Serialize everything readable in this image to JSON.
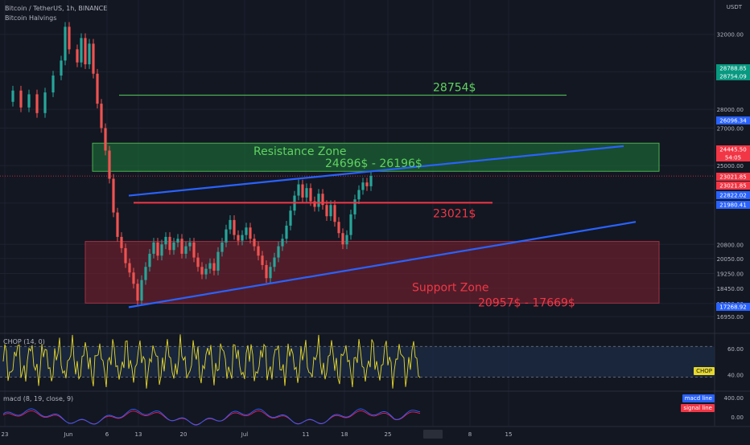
{
  "header": {
    "symbol": "Bitcoin / TetherUS, 1h, BINANCE",
    "indicator": "Bitcoin Halvings",
    "currency": "USDT"
  },
  "chart_data": {
    "type": "candlestick",
    "x_tick_labels": [
      "23",
      "Jun",
      "6",
      "13",
      "20",
      "Jul",
      "11",
      "18",
      "25",
      "Aug",
      "8",
      "15"
    ],
    "y_tick_labels": [
      "32000.00",
      "30000.00",
      "28000.00",
      "27000.00",
      "25000.00",
      "23000.00",
      "20800.00",
      "20050.00",
      "19250.00",
      "18450.00",
      "17650.00",
      "16950.00"
    ],
    "price_path": [
      [
        0,
        28400
      ],
      [
        2,
        29000
      ],
      [
        4,
        28100
      ],
      [
        6,
        28800
      ],
      [
        8,
        27800
      ],
      [
        10,
        28900
      ],
      [
        12,
        29800
      ],
      [
        14,
        30600
      ],
      [
        15,
        32400
      ],
      [
        16,
        31200
      ],
      [
        18,
        30500
      ],
      [
        19,
        31800
      ],
      [
        20,
        30400
      ],
      [
        21,
        31500
      ],
      [
        22,
        29900
      ],
      [
        23,
        28300
      ],
      [
        24,
        27000
      ],
      [
        25,
        25800
      ],
      [
        26,
        24300
      ],
      [
        27,
        22500
      ],
      [
        28,
        21200
      ],
      [
        29,
        20600
      ],
      [
        30,
        19800
      ],
      [
        31,
        19300
      ],
      [
        32,
        18700
      ],
      [
        33,
        17800
      ],
      [
        34,
        18900
      ],
      [
        35,
        19600
      ],
      [
        36,
        20300
      ],
      [
        37,
        20900
      ],
      [
        38,
        20200
      ],
      [
        39,
        20800
      ],
      [
        40,
        21200
      ],
      [
        41,
        20500
      ],
      [
        42,
        20900
      ],
      [
        43,
        21100
      ],
      [
        44,
        20300
      ],
      [
        45,
        20700
      ],
      [
        46,
        20900
      ],
      [
        47,
        20100
      ],
      [
        48,
        19600
      ],
      [
        49,
        19200
      ],
      [
        50,
        19500
      ],
      [
        51,
        19800
      ],
      [
        52,
        19400
      ],
      [
        53,
        20400
      ],
      [
        54,
        20900
      ],
      [
        55,
        21600
      ],
      [
        56,
        22100
      ],
      [
        57,
        21300
      ],
      [
        58,
        21000
      ],
      [
        59,
        21300
      ],
      [
        60,
        21700
      ],
      [
        61,
        21100
      ],
      [
        62,
        20700
      ],
      [
        63,
        20200
      ],
      [
        64,
        19700
      ],
      [
        65,
        19000
      ],
      [
        66,
        19600
      ],
      [
        67,
        20100
      ],
      [
        68,
        20700
      ],
      [
        69,
        21100
      ],
      [
        70,
        21800
      ],
      [
        71,
        22600
      ],
      [
        72,
        23400
      ],
      [
        73,
        24000
      ],
      [
        74,
        23300
      ],
      [
        75,
        23800
      ],
      [
        76,
        23100
      ],
      [
        77,
        22800
      ],
      [
        78,
        23500
      ],
      [
        79,
        22900
      ],
      [
        80,
        22300
      ],
      [
        81,
        22900
      ],
      [
        82,
        22000
      ],
      [
        83,
        21400
      ],
      [
        84,
        20800
      ],
      [
        85,
        21300
      ],
      [
        86,
        22400
      ],
      [
        87,
        23200
      ],
      [
        88,
        23700
      ],
      [
        89,
        24100
      ],
      [
        90,
        23900
      ],
      [
        91,
        24445
      ]
    ],
    "levels": {
      "target": 28754,
      "support_line": 23021,
      "last_price": 24445.5
    },
    "resistance_zone": {
      "low": 24696,
      "high": 26196
    },
    "support_zone": {
      "low": 17669,
      "high": 20957
    },
    "trendlines": [
      {
        "name": "upper-channel",
        "from": [
          30,
          23400
        ],
        "to": [
          120,
          26040
        ]
      },
      {
        "name": "lower-channel",
        "from": [
          28,
          17450
        ],
        "to": [
          122,
          22000
        ]
      }
    ],
    "annotations": {
      "target": "28754$",
      "resistance_title": "Resistance Zone",
      "resistance_range": "24696$ - 26196$",
      "support_line": "23021$",
      "support_title": "Support Zone",
      "support_range": "20957$ - 17669$"
    },
    "price_tags": [
      {
        "text": "28788.85",
        "color": "#089981"
      },
      {
        "text": "28754.09",
        "color": "#089981"
      },
      {
        "text": "26096.34",
        "color": "#2962ff"
      },
      {
        "text": "24445.50",
        "color": "#f23645"
      },
      {
        "text": "54:05",
        "color": "#f23645"
      },
      {
        "text": "23021.85",
        "color": "#f23645"
      },
      {
        "text": "23021.85",
        "color": "#f23645"
      },
      {
        "text": "22822.02",
        "color": "#2962ff"
      },
      {
        "text": "21980.41",
        "color": "#2962ff"
      },
      {
        "text": "17268.92",
        "color": "#2962ff"
      }
    ],
    "chop": {
      "title": "CHOP (14, 0)",
      "upper_band": 61.8,
      "lower_band": 38.2,
      "y_tick_labels": [
        "60.00",
        "40.00"
      ],
      "tag": "CHOP"
    },
    "macd": {
      "title": "macd (8, 19, close, 9)",
      "y_tick_labels": [
        "400.00",
        "0.00"
      ],
      "macd_label": "macd line",
      "signal_label": "signal line"
    }
  },
  "colors": {
    "background": "#131722",
    "up": "#26a69a",
    "down": "#ef5350",
    "resistance_fill": "#1e7a3a",
    "resistance_text": "#5fd35f",
    "support_fill": "#7a1f2e",
    "support_text": "#f23645",
    "target_line": "#4caf50",
    "support_line": "#f23645",
    "trend_blue": "#2962ff",
    "trend_purple": "#9c27b0",
    "chop_line": "#e6d82c",
    "macd_line": "#2962ff",
    "signal_line": "#e91e63"
  }
}
